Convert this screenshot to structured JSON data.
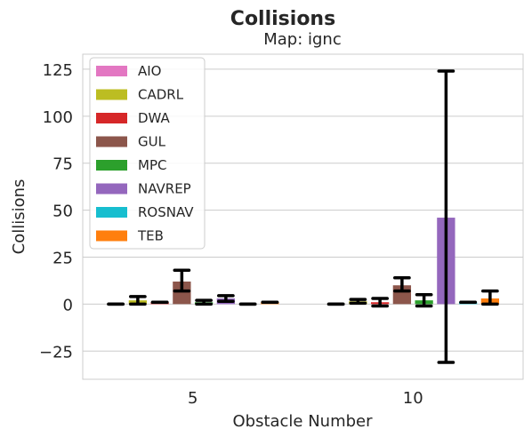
{
  "chart_data": {
    "type": "bar",
    "title": "Collisions",
    "subtitle": "Map: ignc",
    "xlabel": "Obstacle Number",
    "ylabel": "Collisions",
    "categories": [
      "5",
      "10"
    ],
    "ylim": [
      -40,
      133
    ],
    "yticks": [
      -25,
      0,
      25,
      50,
      75,
      100,
      125
    ],
    "ytick_labels": [
      "−25",
      "0",
      "25",
      "50",
      "75",
      "100",
      "125"
    ],
    "grid": true,
    "legend_position": "top-left",
    "series": [
      {
        "name": "AIO",
        "color": "#e377c2",
        "values": [
          0,
          0
        ],
        "err_low": [
          0,
          0
        ],
        "err_high": [
          0,
          0
        ]
      },
      {
        "name": "CADRL",
        "color": "#bcbd22",
        "values": [
          2,
          1.5
        ],
        "err_low": [
          0,
          0.5
        ],
        "err_high": [
          4,
          2.5
        ]
      },
      {
        "name": "DWA",
        "color": "#d62728",
        "values": [
          1,
          1
        ],
        "err_low": [
          1,
          -1
        ],
        "err_high": [
          1,
          3
        ]
      },
      {
        "name": "GUL",
        "color": "#8c564b",
        "values": [
          12,
          10
        ],
        "err_low": [
          7,
          7
        ],
        "err_high": [
          18,
          14
        ]
      },
      {
        "name": "MPC",
        "color": "#2ca02c",
        "values": [
          1,
          2
        ],
        "err_low": [
          0,
          -1
        ],
        "err_high": [
          2,
          5
        ]
      },
      {
        "name": "NAVREP",
        "color": "#9467bd",
        "values": [
          3,
          46
        ],
        "err_low": [
          1.5,
          -31
        ],
        "err_high": [
          4.5,
          124
        ]
      },
      {
        "name": "ROSNAV",
        "color": "#17becf",
        "values": [
          0,
          1
        ],
        "err_low": [
          0,
          1
        ],
        "err_high": [
          0,
          1
        ]
      },
      {
        "name": "TEB",
        "color": "#ff7f0e",
        "values": [
          1,
          3
        ],
        "err_low": [
          1,
          0
        ],
        "err_high": [
          1,
          7
        ]
      }
    ]
  }
}
